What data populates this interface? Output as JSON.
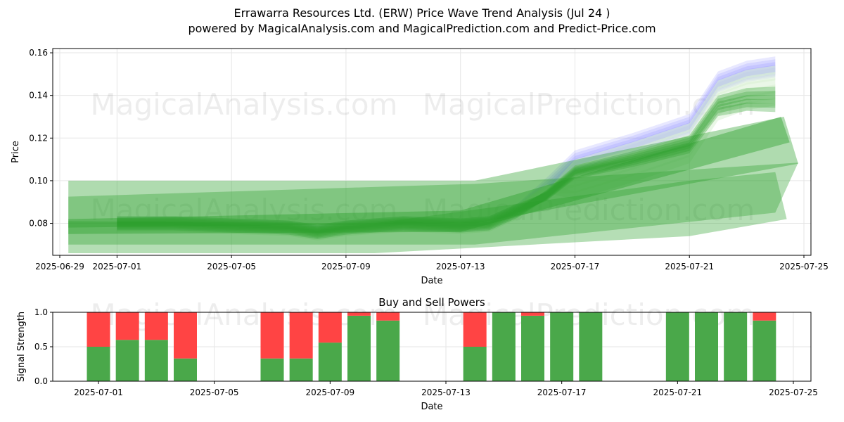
{
  "header": {
    "title": "Errawarra Resources Ltd. (ERW) Price Wave Trend Analysis (Jul 24 )",
    "subtitle": "powered by MagicalAnalysis.com and MagicalPrediction.com and Predict-Price.com"
  },
  "watermarks": [
    "MagicalAnalysis.com",
    "MagicalPrediction.com"
  ],
  "colors": {
    "green_band": "#2ca02c",
    "blue_band": "#8080ff",
    "light_band": "#d9f0d3",
    "buy": "#4aa84a",
    "sell": "#ff4444"
  },
  "chart_data": [
    {
      "type": "area",
      "title": "",
      "xlabel": "Date",
      "ylabel": "Price",
      "xlim": [
        "2025-06-29",
        "2025-07-25"
      ],
      "ylim": [
        0.065,
        0.162
      ],
      "grid": true,
      "x_ticks": [
        "2025-06-29",
        "2025-07-01",
        "2025-07-05",
        "2025-07-09",
        "2025-07-13",
        "2025-07-17",
        "2025-07-21",
        "2025-07-25"
      ],
      "y_ticks": [
        "0.08",
        "0.10",
        "0.12",
        "0.14",
        "0.16"
      ],
      "series": [
        {
          "dates": [
            "2025-07-01",
            "2025-07-03",
            "2025-07-05",
            "2025-07-07",
            "2025-07-08",
            "2025-07-09",
            "2025-07-11",
            "2025-07-13",
            "2025-07-14",
            "2025-07-15",
            "2025-07-16",
            "2025-07-17",
            "2025-07-19",
            "2025-07-21",
            "2025-07-22",
            "2025-07-23",
            "2025-07-24"
          ],
          "values": [
            0.08,
            0.08,
            0.079,
            0.078,
            0.076,
            0.078,
            0.08,
            0.079,
            0.08,
            0.086,
            0.095,
            0.108,
            0.116,
            0.125,
            0.145,
            0.15,
            0.152
          ]
        }
      ]
    },
    {
      "type": "bar",
      "title": "Buy and Sell Powers",
      "xlabel": "Date",
      "ylabel": "Signal Strength",
      "ylim": [
        0,
        1
      ],
      "grid": true,
      "x_ticks": [
        "2025-07-01",
        "2025-07-05",
        "2025-07-09",
        "2025-07-13",
        "2025-07-17",
        "2025-07-21",
        "2025-07-25"
      ],
      "y_ticks": [
        "0.0",
        "0.5",
        "1.0"
      ],
      "categories": [
        "2025-07-01",
        "2025-07-02",
        "2025-07-03",
        "2025-07-04",
        "2025-07-07",
        "2025-07-08",
        "2025-07-09",
        "2025-07-10",
        "2025-07-11",
        "2025-07-14",
        "2025-07-15",
        "2025-07-16",
        "2025-07-17",
        "2025-07-18",
        "2025-07-21",
        "2025-07-22",
        "2025-07-23",
        "2025-07-24"
      ],
      "series": [
        {
          "name": "Buy",
          "values": [
            0.5,
            0.6,
            0.6,
            0.33,
            0.33,
            0.33,
            0.56,
            0.95,
            0.88,
            0.5,
            1.0,
            0.95,
            1.0,
            1.0,
            1.0,
            1.0,
            1.0,
            0.88
          ]
        },
        {
          "name": "Sell",
          "values": [
            0.5,
            0.4,
            0.4,
            0.67,
            0.67,
            0.67,
            0.44,
            0.05,
            0.12,
            0.5,
            0.0,
            0.05,
            0.0,
            0.0,
            0.0,
            0.0,
            0.0,
            0.12
          ]
        }
      ]
    }
  ]
}
